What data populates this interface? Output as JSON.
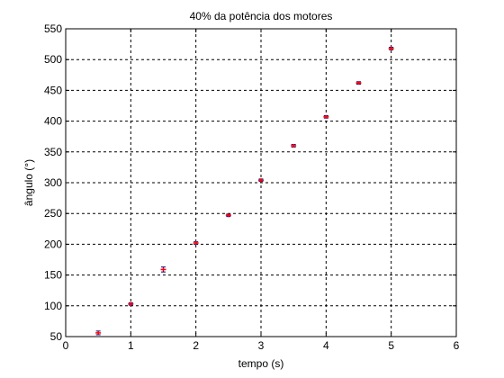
{
  "chart_data": {
    "type": "scatter",
    "title": "40% da potência dos motores",
    "xlabel": "tempo (s)",
    "ylabel": "ângulo (°)",
    "xlim": [
      0,
      6
    ],
    "ylim": [
      50,
      550
    ],
    "xticks": [
      0,
      1,
      2,
      3,
      4,
      5,
      6
    ],
    "yticks": [
      50,
      100,
      150,
      200,
      250,
      300,
      350,
      400,
      450,
      500,
      550
    ],
    "grid": true,
    "marker_color": "#ff0000",
    "errorbar_color": "#000080",
    "series": [
      {
        "x": [
          0.5,
          1.0,
          1.5,
          2.0,
          2.5,
          3.0,
          3.5,
          4.0,
          4.5,
          5.0
        ],
        "y": [
          56,
          103,
          159,
          202,
          247,
          304,
          360,
          407,
          462,
          518
        ],
        "err": [
          3,
          2,
          4,
          2,
          2,
          2,
          2,
          2,
          2,
          2
        ]
      }
    ]
  }
}
